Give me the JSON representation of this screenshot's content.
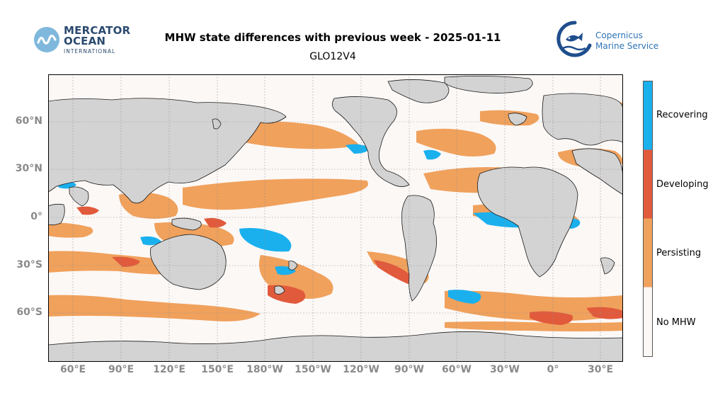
{
  "header": {
    "title": "MHW state differences with previous week - 2025-01-11",
    "subtitle": "GLO12V4"
  },
  "logos": {
    "mercator": {
      "line1": "MERCATOR",
      "line2": "OCEAN",
      "line3": "INTERNATIONAL"
    },
    "copernicus": {
      "line1": "Copernicus",
      "line2": "Marine Service"
    }
  },
  "map": {
    "projection": "plate-carree",
    "lon_range": [
      44,
      330
    ],
    "lat_range": [
      -89,
      85
    ],
    "background_class": "No MHW",
    "land_color": "#d3d3d3",
    "gridlines": true,
    "lat_ticks": [
      "60°N",
      "30°N",
      "0°",
      "30°S",
      "60°S"
    ],
    "lon_ticks": [
      "60°E",
      "90°E",
      "120°E",
      "150°E",
      "180°W",
      "150°W",
      "120°W",
      "90°W",
      "60°W",
      "30°W",
      "0°",
      "30°E"
    ]
  },
  "legend": {
    "items": [
      {
        "label": "Recovering",
        "color": "#1ab0ee"
      },
      {
        "label": "Developing",
        "color": "#e15a3c"
      },
      {
        "label": "Persisting",
        "color": "#f0a15c"
      },
      {
        "label": "No MHW",
        "color": "#fcf8f6"
      }
    ]
  }
}
